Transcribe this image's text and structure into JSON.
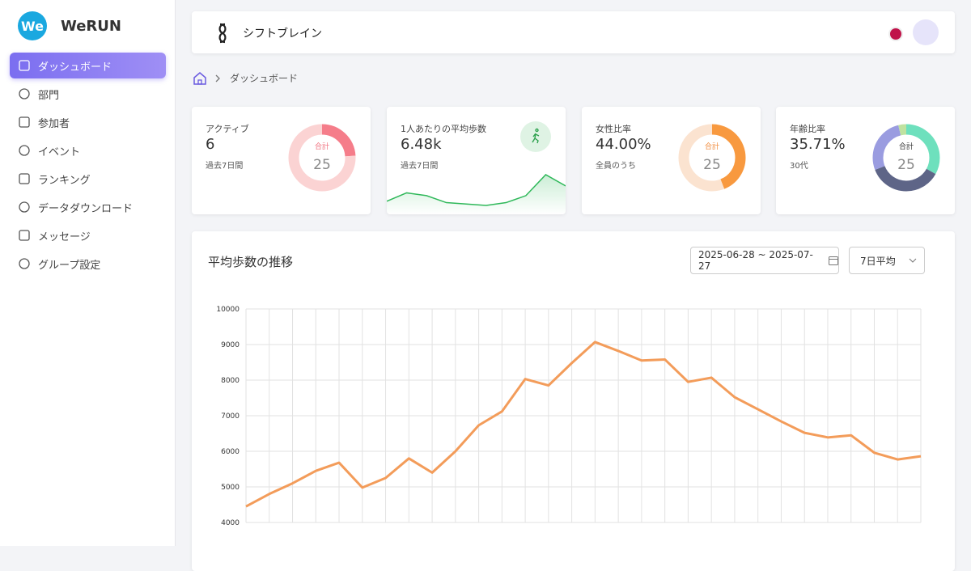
{
  "sidebar": {
    "logo": "We",
    "brand": "WeRUN",
    "menu": [
      "ダッシュボード",
      "部門",
      "参加者",
      "イベント",
      "ランキング",
      "データダウンロード",
      "メッセージ",
      "グループ設定"
    ]
  },
  "header": {
    "organization": "シフトブレイン"
  },
  "breadcrumb": {
    "current": "ダッシュボード"
  },
  "cards": [
    {
      "label": "アクティブ",
      "value": "6",
      "sub": "過去7日間",
      "donut": {
        "center_label": "合計",
        "total": 25,
        "values": [
          6,
          19
        ],
        "colors": [
          "#f57d8a",
          "#fbd3d3"
        ],
        "center_color": "#f0707e"
      }
    },
    {
      "label": "1人あたりの平均歩数",
      "value": "6.48k",
      "sub": "過去7日間",
      "sparkline": [
        5950,
        6250,
        6150,
        5900,
        5850,
        5800,
        5900,
        6150,
        6900,
        6500
      ],
      "color": "#2fb85a"
    },
    {
      "label": "女性比率",
      "value": "44.00%",
      "sub": "全員のうち",
      "donut": {
        "center_label": "合計",
        "total": 25,
        "values": [
          11,
          14
        ],
        "colors": [
          "#f8993f",
          "#fbe3d0"
        ],
        "center_color": "#f08a3a"
      }
    },
    {
      "label": "年齢比率",
      "value": "35.71%",
      "sub": "30代",
      "donut": {
        "center_label": "合計",
        "total": 25,
        "values": [
          33,
          36,
          27,
          4
        ],
        "colors": [
          "#6ee0bd",
          "#5e6587",
          "#9a9ce0",
          "#bfe2a0"
        ],
        "center_color": "#333"
      }
    }
  ],
  "chart_data": {
    "type": "line",
    "title": "平均歩数の推移",
    "date_range": "2025-06-28 ~ 2025-07-27",
    "aggregation": "7日平均",
    "categories": [
      null,
      null,
      null,
      null,
      null,
      null,
      null,
      null,
      null,
      null,
      null,
      null,
      null,
      null,
      null,
      null,
      null,
      null,
      null,
      null,
      null,
      null,
      null,
      null,
      null,
      null,
      null,
      null,
      null,
      null
    ],
    "values": [
      4450,
      4800,
      5100,
      5450,
      5680,
      4980,
      5250,
      5800,
      5400,
      6000,
      6730,
      7120,
      8030,
      7850,
      8480,
      9070,
      8820,
      8550,
      8580,
      7950,
      8070,
      7520,
      7180,
      6840,
      6520,
      6390,
      6450,
      5960,
      5770,
      5860
    ],
    "color": "#f39c5a",
    "ylim": [
      4000,
      10000
    ],
    "yticks": [
      4000,
      5000,
      6000,
      7000,
      8000,
      9000,
      10000
    ],
    "grid": true
  }
}
